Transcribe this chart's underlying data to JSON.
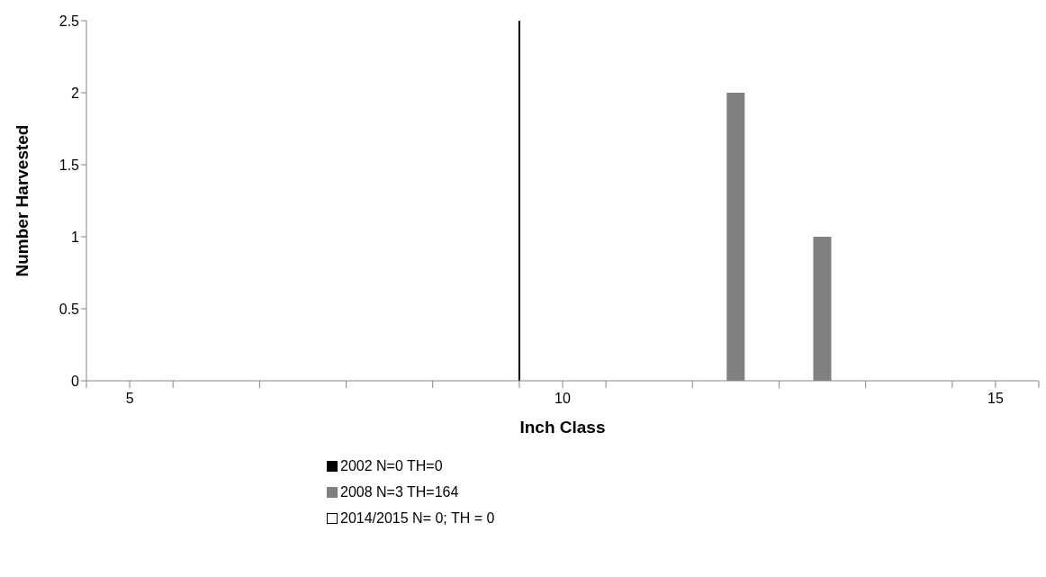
{
  "chart_data": {
    "type": "bar",
    "xlabel": "Inch Class",
    "ylabel": "Number Harvested",
    "x": [
      5,
      6,
      7,
      8,
      9,
      10,
      11,
      12,
      13,
      14,
      15
    ],
    "xlim": [
      4.5,
      15.5
    ],
    "xticks": [
      {
        "value": 4.5,
        "label": null
      },
      5,
      {
        "value": 5.5,
        "label": null
      },
      {
        "value": 6.5,
        "label": null
      },
      {
        "value": 7.5,
        "label": null
      },
      {
        "value": 8.5,
        "label": null
      },
      {
        "value": 9.5,
        "label": null
      },
      10,
      {
        "value": 10.5,
        "label": null
      },
      {
        "value": 11.5,
        "label": null
      },
      {
        "value": 12.5,
        "label": null
      },
      {
        "value": 13.5,
        "label": null
      },
      {
        "value": 14.5,
        "label": null
      },
      15,
      {
        "value": 15.5,
        "label": null
      }
    ],
    "ylim": [
      0,
      2.5
    ],
    "yticks": [
      0,
      0.5,
      1,
      1.5,
      2,
      2.5
    ],
    "series": [
      {
        "name": "2002 N=0 TH=0",
        "color": "#000000",
        "values": [
          0,
          0,
          0,
          0,
          0,
          0,
          0,
          0,
          0,
          0,
          0
        ]
      },
      {
        "name": "2008 N=3 TH=164",
        "color": "#808080",
        "values": [
          0,
          0,
          0,
          0,
          0,
          0,
          0,
          2,
          1,
          0,
          0
        ]
      },
      {
        "name": "2014/2015 N= 0; TH = 0",
        "color": "#ffffff",
        "values": [
          0,
          0,
          0,
          0,
          0,
          0,
          0,
          0,
          0,
          0,
          0
        ]
      }
    ],
    "ref_lines": [
      {
        "axis": "x",
        "value": 9.5,
        "color": "#000000"
      }
    ],
    "grid": false,
    "legend": "bottom"
  }
}
